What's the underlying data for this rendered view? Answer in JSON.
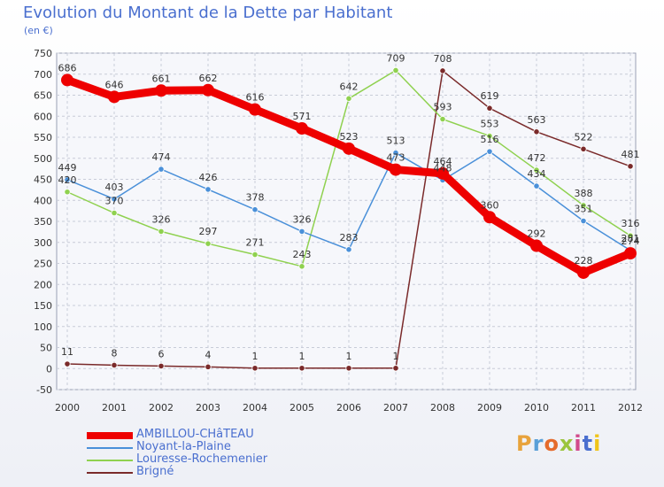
{
  "header": {
    "title": "Evolution du Montant de la Dette par Habitant",
    "subtitle": "(en €)"
  },
  "logo": {
    "text": "Proxiti",
    "colors": [
      "#e8a33c",
      "#5aa0d8",
      "#e56b2c",
      "#9bc53d",
      "#d24a8c",
      "#4a6fcf",
      "#f0c419"
    ]
  },
  "chart_data": {
    "type": "line",
    "title": "Evolution du Montant de la Dette par Habitant",
    "subtitle": "(en €)",
    "x": [
      "2000",
      "2001",
      "2002",
      "2003",
      "2004",
      "2005",
      "2006",
      "2007",
      "2008",
      "2009",
      "2010",
      "2011",
      "2012"
    ],
    "ylim": [
      -50,
      750
    ],
    "yticks": [
      -50,
      0,
      50,
      100,
      150,
      200,
      250,
      300,
      350,
      400,
      450,
      500,
      550,
      600,
      650,
      700,
      750
    ],
    "grid": true,
    "legend_position": "bottom-left",
    "series": [
      {
        "name": "AMBILLOU-CHâTEAU",
        "color": "#ee0000",
        "values": [
          686,
          646,
          661,
          662,
          616,
          571,
          523,
          473,
          464,
          360,
          292,
          228,
          274
        ]
      },
      {
        "name": "Noyant-la-Plaine",
        "color": "#4a90d9",
        "values": [
          449,
          403,
          474,
          426,
          378,
          326,
          283,
          513,
          448,
          516,
          434,
          351,
          281
        ]
      },
      {
        "name": "Louresse-Rochemenier",
        "color": "#8fd14f",
        "values": [
          420,
          370,
          326,
          297,
          271,
          243,
          642,
          709,
          593,
          553,
          472,
          388,
          316
        ]
      },
      {
        "name": "Brigné",
        "color": "#7a2a2a",
        "values": [
          11,
          8,
          6,
          4,
          1,
          1,
          1,
          1,
          708,
          619,
          563,
          522,
          481
        ]
      }
    ]
  }
}
